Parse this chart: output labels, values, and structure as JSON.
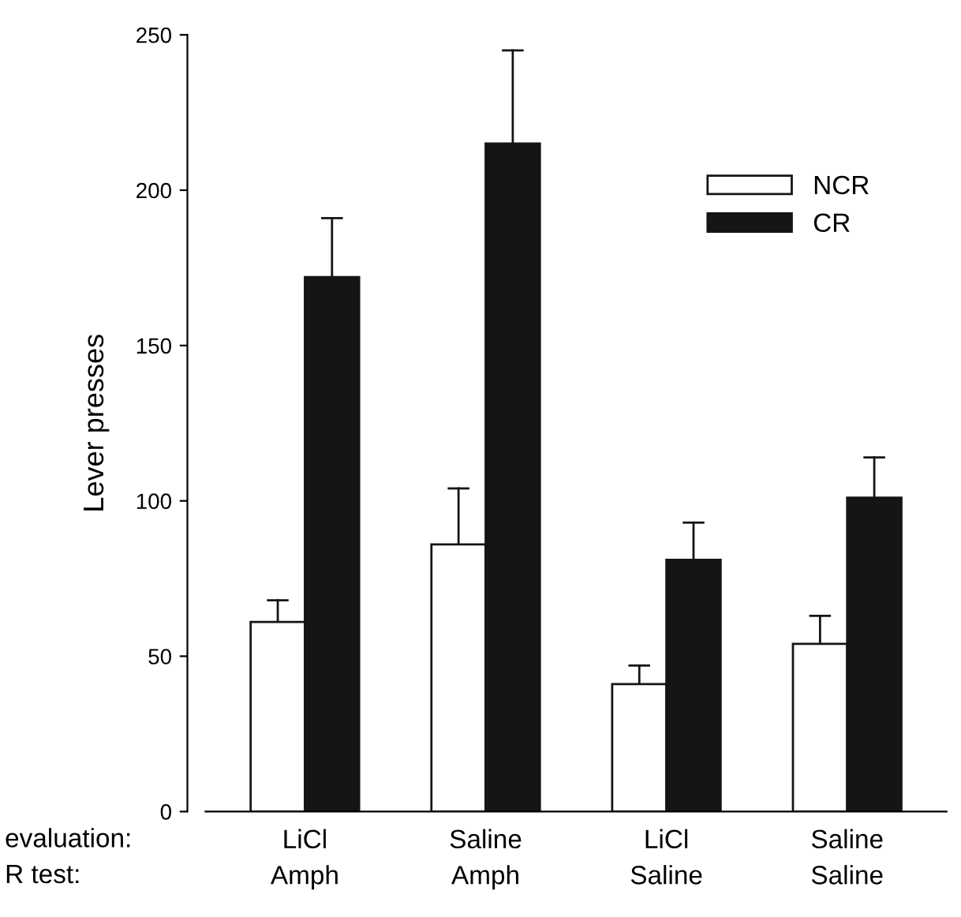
{
  "chart_data": {
    "type": "bar",
    "ylabel": "Lever presses",
    "categories": [
      "LiCl\nAmph",
      "Saline\nAmph",
      "LiCl\nSaline",
      "Saline\nSaline"
    ],
    "series": [
      {
        "name": "NCR",
        "color": "#ffffff",
        "values": [
          61,
          86,
          41,
          54
        ],
        "errors": [
          [
            61,
            68
          ],
          [
            86,
            104
          ],
          [
            41,
            47
          ],
          [
            54,
            63
          ]
        ]
      },
      {
        "name": "CR",
        "color": "#151515",
        "values": [
          172,
          215,
          81,
          101
        ],
        "errors": [
          [
            172,
            191
          ],
          [
            215,
            245
          ],
          [
            81,
            93
          ],
          [
            101,
            114
          ]
        ]
      }
    ],
    "annotations": [
      "evaluation:\nR test:"
    ],
    "ylim": [
      0,
      250
    ],
    "yticks": [
      0,
      50,
      100,
      150,
      200,
      250
    ],
    "grid": false,
    "legend": "top right"
  }
}
